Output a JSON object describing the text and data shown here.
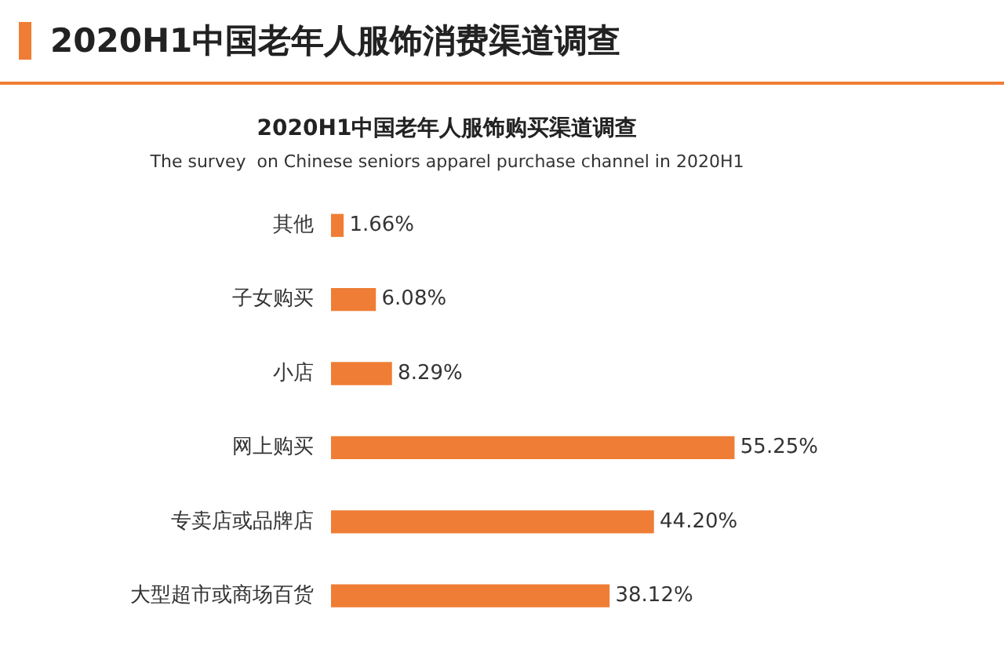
{
  "chart_data": {
    "type": "bar",
    "orientation": "horizontal",
    "title": "2020H1中国老年人服饰购买渠道调查",
    "subtitle": "The survey  on Chinese seniors apparel purchase channel in 2020H1",
    "annotations": [
      "2020H1中国老年人服饰消费渠道调查"
    ],
    "categories": [
      "其他",
      "子女购买",
      "小店",
      "网上购买",
      "专卖店或品牌店",
      "大型超市或商场百货"
    ],
    "values": [
      1.66,
      6.08,
      8.29,
      55.25,
      44.2,
      38.12
    ],
    "value_labels": [
      "1.66%",
      "6.08%",
      "8.29%",
      "55.25%",
      "44.20%",
      "38.12%"
    ],
    "color": "#ef7d35"
  }
}
